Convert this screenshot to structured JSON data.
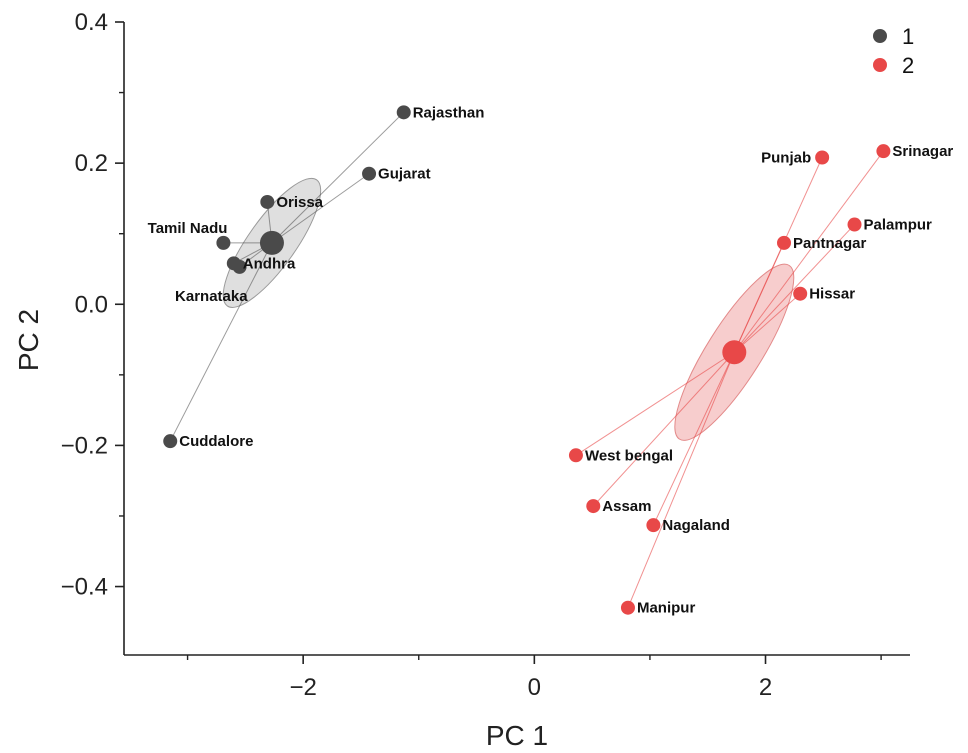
{
  "chart_data": {
    "type": "scatter",
    "title": "",
    "xlabel": "PC 1",
    "ylabel": "PC 2",
    "xlim": [
      -3.55,
      3.25
    ],
    "ylim": [
      -0.497,
      0.4
    ],
    "xticks": [
      -2,
      0,
      2
    ],
    "xtick_labels": [
      "−2",
      "0",
      "2"
    ],
    "yticks": [
      0.4,
      0.2,
      0.0,
      -0.2,
      -0.4
    ],
    "ytick_labels": [
      "0.4",
      "0.2",
      "0.0",
      "−0.2",
      "−0.4"
    ],
    "grid": false,
    "legend_position": "top-right",
    "series": [
      {
        "name": "1",
        "color": "#4a4a4a",
        "ellipse_fill": "#d9d9d9",
        "ellipse_stroke": "#9a9a9a",
        "centroid": [
          -2.27,
          0.087
        ],
        "ellipse": {
          "rx": 1.61,
          "ry": 0.068,
          "angle_deg": 12.7
        },
        "points": [
          {
            "label": "Rajasthan",
            "x": -1.13,
            "y": 0.272
          },
          {
            "label": "Gujarat",
            "x": -1.43,
            "y": 0.185
          },
          {
            "label": "Orissa",
            "x": -2.31,
            "y": 0.145
          },
          {
            "label": "Tamil Nadu",
            "x": -2.69,
            "y": 0.087
          },
          {
            "label": "Andhra",
            "x": -2.6,
            "y": 0.058
          },
          {
            "label": "Karnataka",
            "x": -2.55,
            "y": 0.053
          },
          {
            "label": "Cuddalore",
            "x": -3.15,
            "y": -0.194
          }
        ]
      },
      {
        "name": "2",
        "color": "#e84848",
        "ellipse_fill": "#f6c4c4",
        "ellipse_stroke": "#e38a8a",
        "centroid": [
          1.73,
          -0.068
        ],
        "ellipse": {
          "rx": 2.14,
          "ry": 0.078,
          "angle_deg": 11.6
        },
        "points": [
          {
            "label": "Srinagar",
            "x": 3.02,
            "y": 0.217
          },
          {
            "label": "Punjab",
            "x": 2.49,
            "y": 0.208
          },
          {
            "label": "Palampur",
            "x": 2.77,
            "y": 0.113
          },
          {
            "label": "Pantnagar",
            "x": 2.16,
            "y": 0.087
          },
          {
            "label": "Hissar",
            "x": 2.3,
            "y": 0.015
          },
          {
            "label": "West bengal",
            "x": 0.36,
            "y": -0.214
          },
          {
            "label": "Assam",
            "x": 0.51,
            "y": -0.286
          },
          {
            "label": "Nagaland",
            "x": 1.03,
            "y": -0.313
          },
          {
            "label": "Manipur",
            "x": 0.81,
            "y": -0.43
          }
        ]
      }
    ]
  }
}
